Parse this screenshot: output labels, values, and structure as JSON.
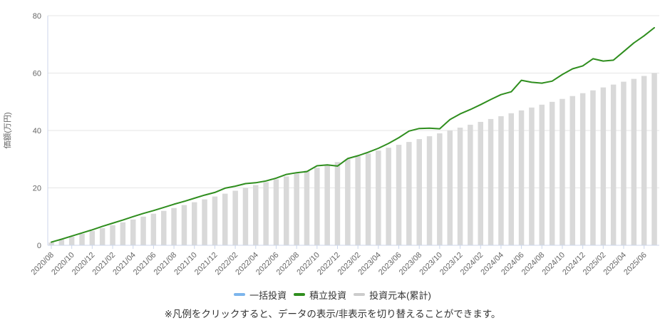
{
  "y_axis": {
    "title": "価額(万円)",
    "ticks": [
      0,
      20,
      40,
      60,
      80
    ],
    "max": 80
  },
  "legend": {
    "items": [
      {
        "label": "一括投資",
        "color": "#7cb5ec"
      },
      {
        "label": "積立投資",
        "color": "#2f8e1e"
      },
      {
        "label": "投資元本(累計)",
        "color": "#cccccc"
      }
    ]
  },
  "note": "※凡例をクリックすると、データの表示/非表示を切り替えることができます。",
  "colors": {
    "grid": "#e6e6e6",
    "axis": "#ccd6eb",
    "tick_label": "#666666",
    "bar": "#d9d9d9",
    "line_green": "#2f8e1e",
    "line_blue": "#7cb5ec"
  },
  "chart_data": {
    "type": "line",
    "title": "",
    "xlabel": "",
    "ylabel": "価額(万円)",
    "ylim": [
      0,
      80
    ],
    "grid": true,
    "legend_position": "bottom",
    "x_tick_interval": 2,
    "x": [
      "2020/08",
      "2020/09",
      "2020/10",
      "2020/11",
      "2020/12",
      "2021/01",
      "2021/02",
      "2021/03",
      "2021/04",
      "2021/05",
      "2021/06",
      "2021/07",
      "2021/08",
      "2021/09",
      "2021/10",
      "2021/11",
      "2021/12",
      "2022/01",
      "2022/02",
      "2022/03",
      "2022/04",
      "2022/05",
      "2022/06",
      "2022/07",
      "2022/08",
      "2022/09",
      "2022/10",
      "2022/11",
      "2022/12",
      "2023/01",
      "2023/02",
      "2023/03",
      "2023/04",
      "2023/05",
      "2023/06",
      "2023/07",
      "2023/08",
      "2023/09",
      "2023/10",
      "2023/11",
      "2023/12",
      "2024/01",
      "2024/02",
      "2024/03",
      "2024/04",
      "2024/05",
      "2024/06",
      "2024/07",
      "2024/08",
      "2024/09",
      "2024/10",
      "2024/11",
      "2024/12",
      "2025/01",
      "2025/02",
      "2025/03",
      "2025/04",
      "2025/05",
      "2025/06",
      "2025/07"
    ],
    "series": [
      {
        "name": "一括投資",
        "type": "line",
        "color": "#7cb5ec",
        "visible": false,
        "values": []
      },
      {
        "name": "積立投資",
        "type": "line",
        "color": "#2f8e1e",
        "visible": true,
        "values": [
          1.1,
          2.1,
          3.2,
          4.3,
          5.4,
          6.6,
          7.7,
          8.8,
          10.0,
          11.1,
          12.1,
          13.2,
          14.3,
          15.3,
          16.4,
          17.5,
          18.4,
          19.9,
          20.6,
          21.5,
          21.8,
          22.4,
          23.4,
          24.7,
          25.3,
          25.7,
          27.7,
          28.0,
          27.6,
          30.2,
          31.2,
          32.4,
          33.8,
          35.5,
          37.5,
          39.8,
          40.7,
          40.8,
          40.6,
          43.8,
          45.8,
          47.3,
          49.0,
          50.8,
          52.5,
          53.5,
          57.5,
          56.8,
          56.5,
          57.2,
          59.5,
          61.5,
          62.5,
          65.0,
          64.2,
          64.5,
          67.5,
          70.5,
          73.0,
          75.8
        ]
      },
      {
        "name": "投資元本(累計)",
        "type": "bar",
        "color": "#d9d9d9",
        "visible": true,
        "values": [
          1,
          2,
          3,
          4,
          5,
          6,
          7,
          8,
          9,
          10,
          11,
          12,
          13,
          14,
          15,
          16,
          17,
          18,
          19,
          20,
          21,
          22,
          23,
          24,
          25,
          26,
          27,
          28,
          29,
          30,
          31,
          32,
          33,
          34,
          35,
          36,
          37,
          38,
          39,
          40,
          41,
          42,
          43,
          44,
          45,
          46,
          47,
          48,
          49,
          50,
          51,
          52,
          53,
          54,
          55,
          56,
          57,
          58,
          59,
          60
        ]
      }
    ]
  }
}
